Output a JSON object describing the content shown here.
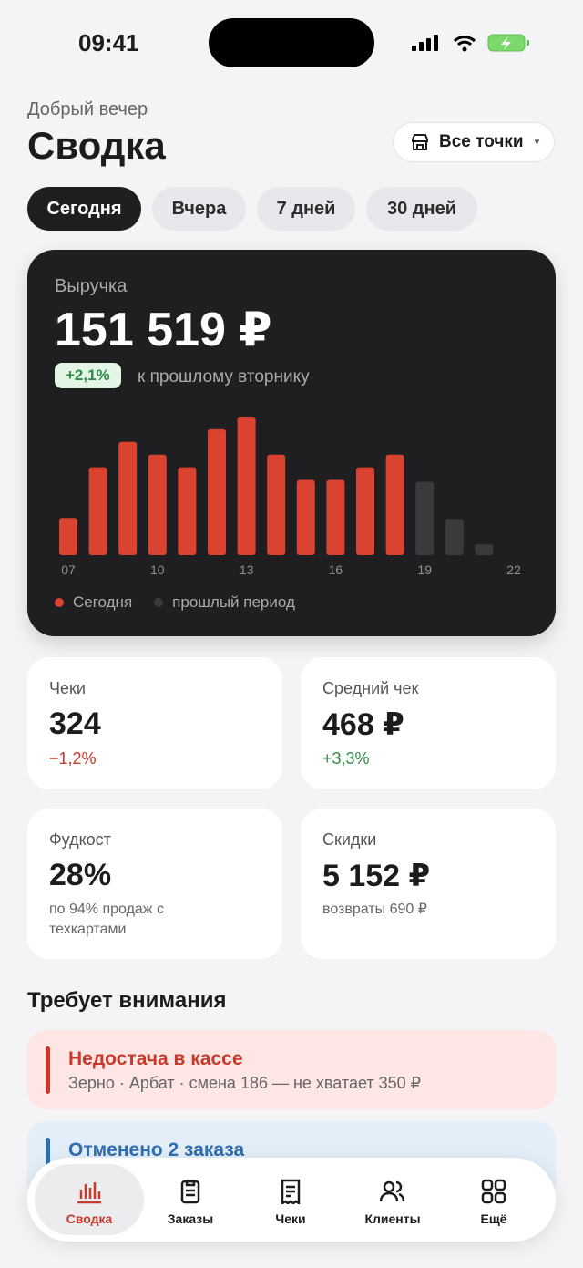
{
  "status_bar": {
    "time": "09:41"
  },
  "header": {
    "greeting": "Добрый вечер",
    "title": "Сводка",
    "location_button": "Все точки"
  },
  "periods": [
    "Сегодня",
    "Вчера",
    "7 дней",
    "30 дней"
  ],
  "revenue_card": {
    "label": "Выручка",
    "value": "151 519 ₽",
    "change": "+2,1%",
    "change_note": "к прошлому вторнику"
  },
  "chart_data": {
    "type": "bar",
    "categories": [
      "07",
      null,
      null,
      "10",
      null,
      null,
      "13",
      null,
      null,
      "16",
      null,
      null,
      "19",
      null,
      null,
      "22"
    ],
    "series": [
      {
        "name": "Сегодня",
        "color": "#d9432f",
        "values": [
          41,
          97,
          125,
          111,
          97,
          139,
          153,
          111,
          83,
          83,
          97,
          111,
          null,
          null,
          null,
          null
        ]
      },
      {
        "name": "прошлый период",
        "color": "#3a3a3c",
        "values": [
          null,
          null,
          null,
          null,
          null,
          null,
          null,
          null,
          null,
          null,
          null,
          null,
          81,
          40,
          12,
          null
        ]
      }
    ],
    "ylim": [
      0,
      160
    ]
  },
  "metrics": [
    {
      "label": "Чеки",
      "value": "324",
      "note": "−1,2%"
    },
    {
      "label": "Средний чек",
      "value": "468 ₽",
      "note": "+3,3%"
    },
    {
      "label": "Фудкост",
      "value": "28%",
      "note": "по 94% продаж с техкартами"
    },
    {
      "label": "Скидки",
      "value": "5 152 ₽",
      "note": "возвраты 690 ₽"
    }
  ],
  "attention": {
    "title": "Требует внимания",
    "items": [
      {
        "title": "Недостача в кассе",
        "detail": "Зерно · Арбат · смена 186 — не хватает 350 ₽"
      },
      {
        "title": "Отменено 2 заказа"
      }
    ]
  },
  "nav": [
    "Сводка",
    "Заказы",
    "Чеки",
    "Клиенты",
    "Ещё"
  ]
}
